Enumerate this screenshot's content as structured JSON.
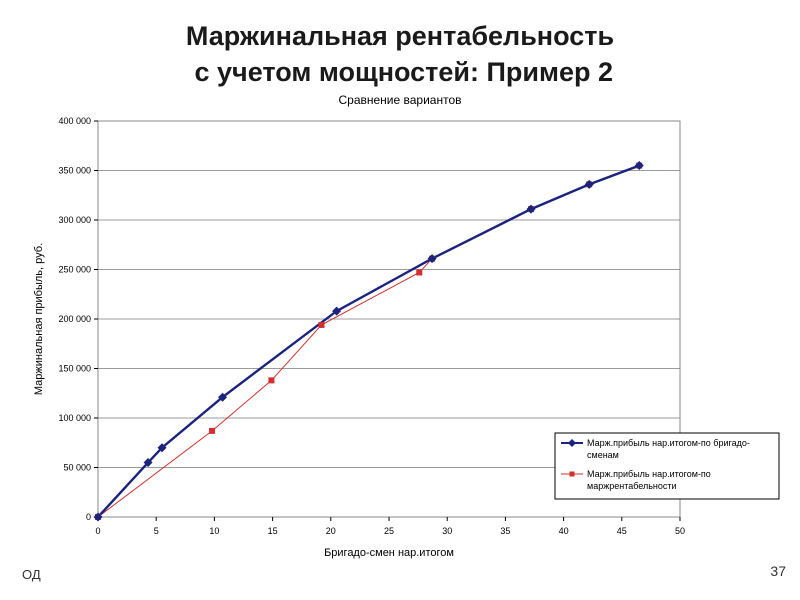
{
  "slide": {
    "title_line1": "Маржинальная рентабельность",
    "title_line2": " с учетом мощностей: Пример 2",
    "footer_left": "ОД",
    "page_number": "37"
  },
  "chart_data": {
    "type": "line",
    "title": "Сравнение вариантов",
    "xlabel": "Бригадо-смен нар.итогом",
    "ylabel": "Маржинальная прибыль, руб.",
    "xlim": [
      0,
      50
    ],
    "ylim": [
      0,
      400000
    ],
    "x_ticks": [
      0,
      5,
      10,
      15,
      20,
      25,
      30,
      35,
      40,
      45,
      50
    ],
    "y_ticks": [
      0,
      50000,
      100000,
      150000,
      200000,
      250000,
      300000,
      350000,
      400000
    ],
    "x_tick_labels": [
      "0",
      "5",
      "10",
      "15",
      "20",
      "25",
      "30",
      "35",
      "40",
      "45",
      "50"
    ],
    "y_tick_labels": [
      "0",
      "50 000",
      "100 000",
      "150 000",
      "200 000",
      "250 000",
      "300 000",
      "350 000",
      "400 000"
    ],
    "grid": "horizontal",
    "legend_position": "bottom-right",
    "series": [
      {
        "name": "Марж.прибыль нар.итогом-по бригадо-сменам",
        "color": "#1a237e",
        "marker": "diamond",
        "x": [
          0,
          4.3,
          5.5,
          10.7,
          20.5,
          28.7,
          37.2,
          42.2,
          46.5
        ],
        "y": [
          0,
          55000,
          70000,
          121000,
          208000,
          261000,
          311000,
          336000,
          355000
        ]
      },
      {
        "name": "Марж.прибыль нар.итогом-по маржрентабельности",
        "color": "#d32f2f",
        "marker": "square",
        "x": [
          0,
          9.8,
          14.9,
          19.2,
          27.6,
          28.7,
          37.2,
          42.2,
          46.5
        ],
        "y": [
          0,
          87000,
          138000,
          194000,
          247000,
          261000,
          311000,
          336000,
          355000
        ]
      }
    ]
  }
}
